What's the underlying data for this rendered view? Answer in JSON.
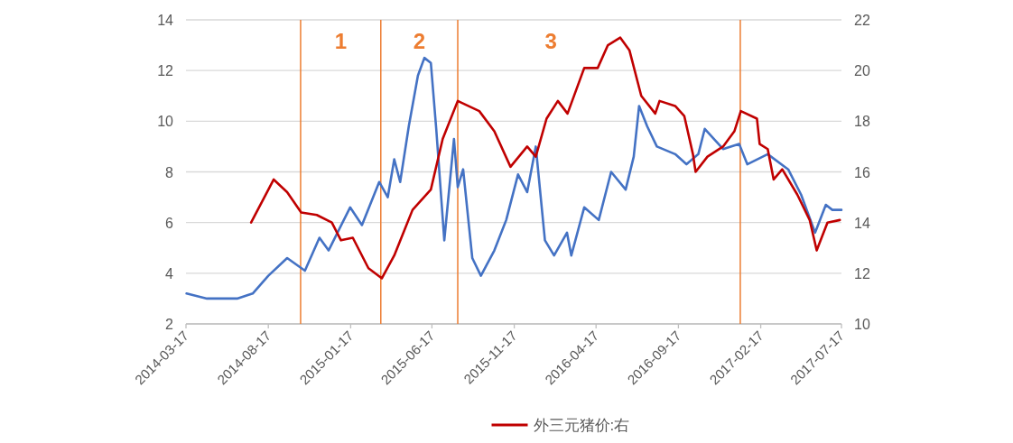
{
  "chart_data": {
    "type": "line",
    "xlim": [
      "2014-03-17",
      "2017-07-17"
    ],
    "xticks": [
      "2014-03-17",
      "2014-08-17",
      "2015-01-17",
      "2015-06-17",
      "2015-11-17",
      "2016-04-17",
      "2016-09-17",
      "2017-02-17",
      "2017-07-17"
    ],
    "ylim": [
      2,
      14
    ],
    "yticks": [
      2,
      4,
      6,
      8,
      10,
      12,
      14
    ],
    "y2lim": [
      10,
      22
    ],
    "y2ticks": [
      10,
      12,
      14,
      16,
      18,
      20,
      22
    ],
    "grid": "y",
    "legend": "bottom",
    "line_style": "solid",
    "marker": "none",
    "series": [
      {
        "color": "#4472c4",
        "x": [
          "2014-03-18",
          "2014-04-25",
          "2014-06-20",
          "2014-07-19",
          "2014-08-17",
          "2014-09-21",
          "2014-10-24",
          "2014-11-20",
          "2014-12-07",
          "2015-01-16",
          "2015-02-07",
          "2015-03-11",
          "2015-03-27",
          "2015-04-08",
          "2015-04-19",
          "2015-05-05",
          "2015-05-22",
          "2015-06-03",
          "2015-06-15",
          "2015-06-25",
          "2015-07-10",
          "2015-07-28",
          "2015-08-04",
          "2015-08-14",
          "2015-08-31",
          "2015-09-16",
          "2015-10-11",
          "2015-11-02",
          "2015-11-24",
          "2015-12-11",
          "2015-12-27",
          "2016-01-13",
          "2016-01-30",
          "2016-02-23",
          "2016-03-02",
          "2016-03-26",
          "2016-04-22",
          "2016-05-15",
          "2016-06-11",
          "2016-06-26",
          "2016-07-06",
          "2016-07-21",
          "2016-08-08",
          "2016-09-11",
          "2016-10-02",
          "2016-10-24",
          "2016-11-05",
          "2016-12-09",
          "2017-01-08",
          "2017-01-23",
          "2017-03-02",
          "2017-04-09",
          "2017-05-03",
          "2017-05-29",
          "2017-06-18",
          "2017-06-30",
          "2017-07-17"
        ],
        "values": [
          3.2,
          3.0,
          3.0,
          3.2,
          3.9,
          4.6,
          4.1,
          5.4,
          4.9,
          6.6,
          5.9,
          7.6,
          7.0,
          8.5,
          7.6,
          9.8,
          11.8,
          12.5,
          12.3,
          9.7,
          5.3,
          9.3,
          7.4,
          8.1,
          4.6,
          3.9,
          4.9,
          6.1,
          7.9,
          7.2,
          9.0,
          5.3,
          4.7,
          5.6,
          4.7,
          6.6,
          6.1,
          8.0,
          7.3,
          8.6,
          10.6,
          9.8,
          9.0,
          8.7,
          8.3,
          8.7,
          9.7,
          8.9,
          9.1,
          8.3,
          8.7,
          8.1,
          7.1,
          5.6,
          6.7,
          6.5,
          6.5
        ]
      },
      {
        "name": "外三元猪价:右",
        "axis": "y2",
        "color": "#c00000",
        "x": [
          "2014-07-16",
          "2014-08-27",
          "2014-09-21",
          "2014-10-17",
          "2014-11-15",
          "2014-12-13",
          "2014-12-30",
          "2015-01-21",
          "2015-02-19",
          "2015-03-16",
          "2015-04-08",
          "2015-05-12",
          "2015-06-15",
          "2015-07-07",
          "2015-08-04",
          "2015-09-13",
          "2015-10-11",
          "2015-11-10",
          "2015-12-11",
          "2015-12-27",
          "2016-01-16",
          "2016-02-06",
          "2016-02-24",
          "2016-03-26",
          "2016-04-20",
          "2016-05-09",
          "2016-06-01",
          "2016-06-18",
          "2016-07-10",
          "2016-08-05",
          "2016-08-13",
          "2016-09-11",
          "2016-09-28",
          "2016-10-14",
          "2016-10-19",
          "2016-11-10",
          "2016-12-09",
          "2016-12-30",
          "2017-01-11",
          "2017-02-10",
          "2017-02-15",
          "2017-03-02",
          "2017-03-13",
          "2017-03-29",
          "2017-04-26",
          "2017-05-19",
          "2017-06-01",
          "2017-06-21",
          "2017-07-14"
        ],
        "values": [
          14.0,
          15.7,
          15.2,
          14.4,
          14.3,
          14.0,
          13.3,
          13.4,
          12.2,
          11.8,
          12.7,
          14.5,
          15.3,
          17.3,
          18.8,
          18.4,
          17.6,
          16.2,
          17.0,
          16.6,
          18.1,
          18.8,
          18.3,
          20.1,
          20.1,
          21.0,
          21.3,
          20.8,
          19.0,
          18.3,
          18.8,
          18.6,
          18.2,
          16.7,
          16.0,
          16.6,
          17.0,
          17.6,
          18.4,
          18.1,
          17.1,
          16.9,
          15.7,
          16.1,
          15.1,
          14.1,
          12.9,
          14.0,
          14.1
        ]
      }
    ],
    "ref_lines": [
      {
        "axis": "x",
        "value": "2014-10-16",
        "color": "#ed7d31"
      },
      {
        "axis": "x",
        "value": "2015-03-14",
        "color": "#ed7d31"
      },
      {
        "axis": "x",
        "value": "2015-08-04",
        "color": "#ed7d31"
      },
      {
        "axis": "x",
        "value": "2017-01-10",
        "color": "#ed7d31"
      }
    ],
    "annotations": [
      "1",
      "2",
      "3"
    ]
  }
}
